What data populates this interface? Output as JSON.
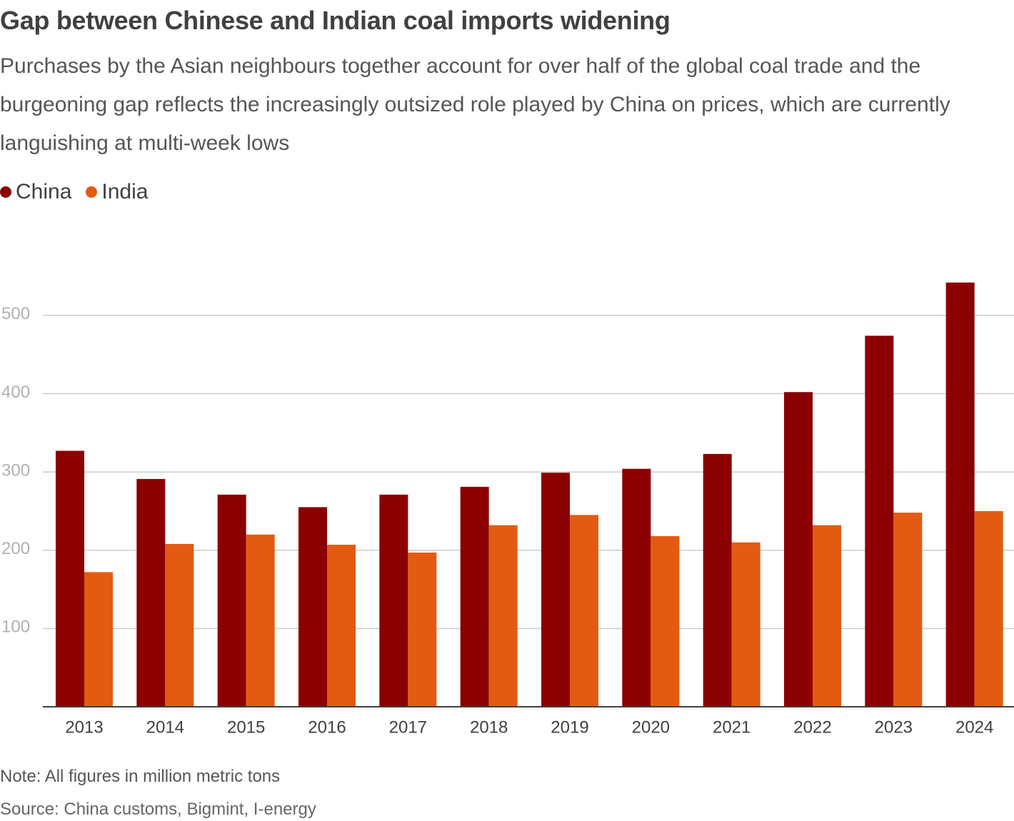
{
  "header": {
    "title": "Gap between Chinese and Indian coal imports widening",
    "subtitle": "Purchases by the Asian neighbours together account for over half of the global coal trade and the burgeoning gap reflects the increasingly outsized role played by China on prices, which are currently languishing at multi-week lows"
  },
  "legend": {
    "items": [
      {
        "label": "China",
        "color": "#8b0000"
      },
      {
        "label": "India",
        "color": "#e35b12"
      }
    ]
  },
  "footer": {
    "note": "Note: All figures in million metric tons",
    "source": "Source: China customs, Bigmint, I-energy"
  },
  "chart_data": {
    "type": "bar",
    "title": "Gap between Chinese and Indian coal imports widening",
    "xlabel": "",
    "ylabel": "",
    "categories": [
      "2013",
      "2014",
      "2015",
      "2016",
      "2017",
      "2018",
      "2019",
      "2020",
      "2021",
      "2022",
      "2023",
      "2024"
    ],
    "series": [
      {
        "name": "China",
        "color": "#8b0000",
        "values": [
          327,
          291,
          271,
          255,
          271,
          281,
          299,
          304,
          323,
          402,
          474,
          542
        ]
      },
      {
        "name": "India",
        "color": "#e35b12",
        "values": [
          172,
          208,
          220,
          207,
          197,
          232,
          245,
          218,
          210,
          232,
          248,
          250
        ]
      }
    ],
    "yticks": [
      100,
      200,
      300,
      400,
      500
    ],
    "ylim": [
      0,
      560
    ],
    "grid": true,
    "legend_position": "top-left"
  }
}
